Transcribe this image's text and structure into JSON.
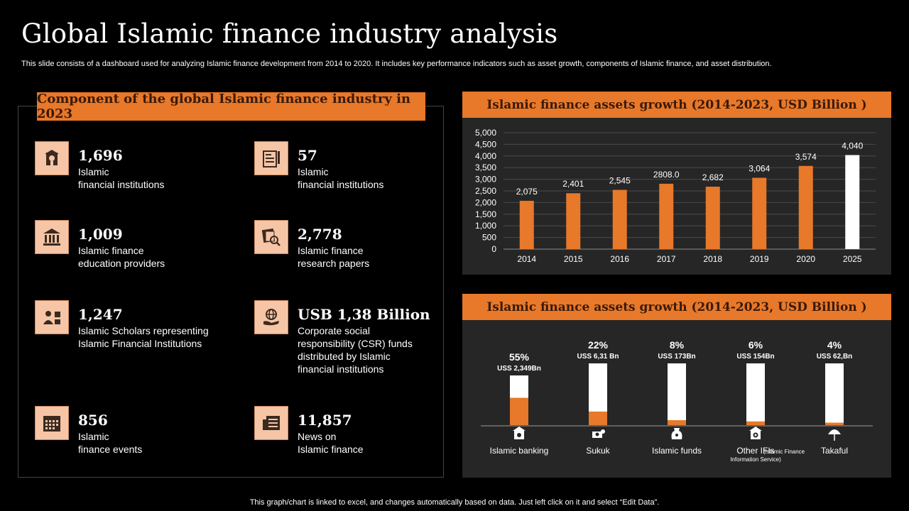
{
  "title": "Global Islamic finance industry analysis",
  "subtitle": "This slide consists of a dashboard used for analyzing Islamic finance development from 2014 to 2020. It includes key performance indicators such as asset growth, components of Islamic finance, and asset distribution.",
  "footnote": "This graph/chart is linked to excel,  and changes automatically based on data. Just left click on it and select “Edit Data”.",
  "left_panel": {
    "header": "Component of the global Islamic finance industry in 2023",
    "kpis": [
      {
        "value": "1,696",
        "desc": "Islamic\nfinancial institutions",
        "icon": "bank-building-icon"
      },
      {
        "value": "57",
        "desc": "Islamic\nfinancial institutions",
        "icon": "certificate-icon"
      },
      {
        "value": "1,009",
        "desc": "Islamic finance\neducation providers",
        "icon": "institution-icon"
      },
      {
        "value": "2,778",
        "desc": "Islamic finance\nresearch papers",
        "icon": "research-papers-icon"
      },
      {
        "value": "1,247",
        "desc": "Islamic Scholars representing\nIslamic Financial Institutions",
        "icon": "scholar-icon"
      },
      {
        "value": "USB 1,38 Billion",
        "desc": "Corporate social\nresponsibility (CSR) funds\ndistributed by Islamic\nfinancial institutions",
        "icon": "globe-hand-icon"
      },
      {
        "value": "856",
        "desc": "Islamic\nfinance events",
        "icon": "calendar-icon"
      },
      {
        "value": "11,857",
        "desc": "News on\nIslamic finance",
        "icon": "newspaper-icon"
      }
    ]
  },
  "growth_panel": {
    "header": "Islamic finance assets growth (2014-2023, USD Billion )"
  },
  "components_panel": {
    "header": "Islamic finance assets growth (2014-2023, USD Billion )",
    "items": [
      {
        "pct": "55%",
        "amount": "USS 2,349Bn",
        "label": "Islamic banking",
        "sublabel": "",
        "fill": 0.55,
        "icon": "bank-icon"
      },
      {
        "pct": "22%",
        "amount": "USS 6,31 Bn",
        "label": "Sukuk",
        "sublabel": "",
        "fill": 0.22,
        "icon": "money-icon"
      },
      {
        "pct": "8%",
        "amount": "USS 173Bn",
        "label": "Islamic funds",
        "sublabel": "",
        "fill": 0.08,
        "icon": "money-bag-icon"
      },
      {
        "pct": "6%",
        "amount": "USS 154Bn",
        "label": "Other IFIs",
        "sublabel": "(Islamic Finance Information Service)",
        "fill": 0.06,
        "icon": "building-icon"
      },
      {
        "pct": "4%",
        "amount": "USS 62,Bn",
        "label": "Takaful",
        "sublabel": "",
        "fill": 0.04,
        "icon": "umbrella-icon"
      }
    ]
  },
  "colors": {
    "accent": "#e8782a",
    "panel": "#262626",
    "icon_bg": "#f6c5a5",
    "highlight_bar": "#ffffff"
  },
  "chart_data": {
    "type": "bar",
    "categories": [
      "2014",
      "2015",
      "2016",
      "2017",
      "2018",
      "2019",
      "2020",
      "2025"
    ],
    "values": [
      2075,
      2401,
      2545,
      2808.0,
      2682,
      3064,
      3574,
      4040
    ],
    "value_labels": [
      "2,075",
      "2,401",
      "2,545",
      "2808.0",
      "2,682",
      "3,064",
      "3,574",
      "4,040"
    ],
    "ylim": [
      0,
      5000
    ],
    "yticks": [
      "0",
      "500",
      "1,000",
      "1,500",
      "2,000",
      "2,500",
      "3,000",
      "3,500",
      "4,000",
      "4,500",
      "5,000"
    ],
    "grid": true,
    "highlight_index": 7
  }
}
